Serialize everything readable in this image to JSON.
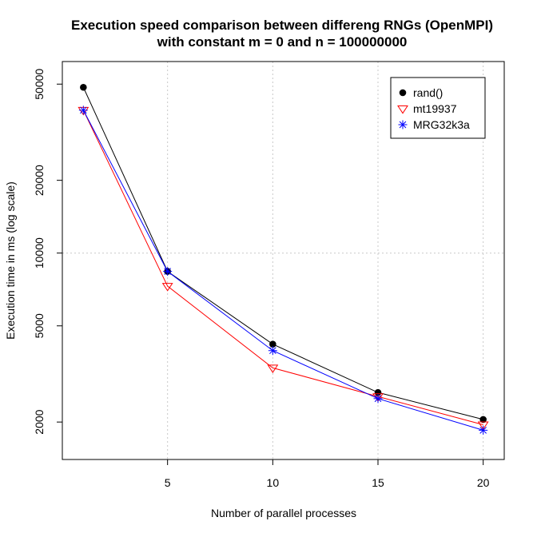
{
  "chart_data": {
    "type": "line",
    "title": "Execution speed comparison between differeng RNGs (OpenMPI)",
    "subtitle": "with constant m = 0 and n = 100000000",
    "xlabel": "Number of parallel processes",
    "ylabel": "Execution time in ms (log scale)",
    "log_y": true,
    "xlim": [
      0,
      21
    ],
    "ylim": [
      1400,
      62000
    ],
    "x_ticks": [
      5,
      10,
      15,
      20
    ],
    "y_ticks": [
      2000,
      5000,
      10000,
      20000,
      50000
    ],
    "x_grid": [
      5,
      10,
      15,
      20
    ],
    "y_grid": [
      10000
    ],
    "grid": true,
    "legend_position": "top-right",
    "x": [
      1,
      5,
      10,
      15,
      20
    ],
    "series": [
      {
        "name": "rand()",
        "color": "#000000",
        "marker": "filled-circle",
        "values": [
          48500,
          8400,
          4200,
          2650,
          2050
        ]
      },
      {
        "name": "mt19937",
        "color": "#ff0000",
        "marker": "triangle-down",
        "values": [
          39000,
          7300,
          3350,
          2550,
          1950
        ]
      },
      {
        "name": "MRG32k3a",
        "color": "#0000ff",
        "marker": "asterisk",
        "values": [
          39000,
          8400,
          3950,
          2500,
          1850
        ]
      }
    ]
  }
}
